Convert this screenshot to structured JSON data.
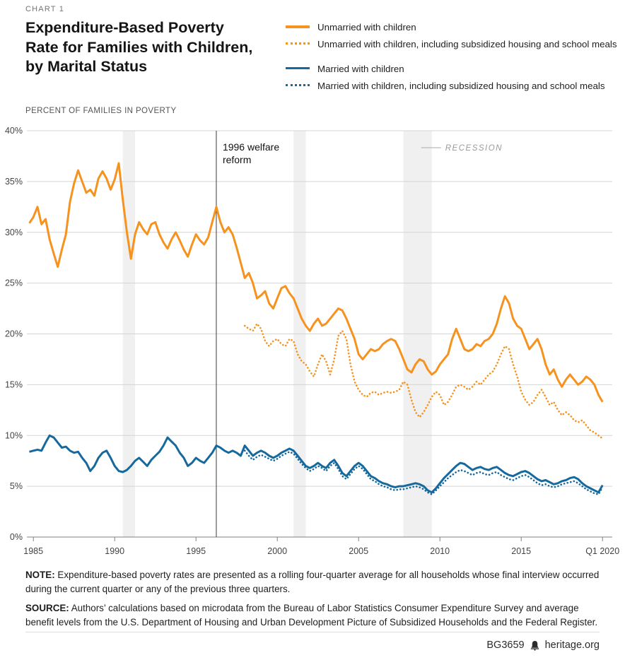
{
  "header": {
    "kicker": "CHART 1",
    "title_lines": [
      "Expenditure-Based Poverty",
      "Rate for Families with Children,",
      "by Marital Status"
    ]
  },
  "legend": {
    "items": [
      {
        "label": "Unmarried with children",
        "color": "#F6921E",
        "style": "solid"
      },
      {
        "label": "Unmarried with children, including subsidized housing and school meals",
        "color": "#F6921E",
        "style": "dotted"
      },
      {
        "label": "Married with children",
        "color": "#16699D",
        "style": "solid"
      },
      {
        "label": "Married with children, including subsidized housing and school meals",
        "color": "#16699D",
        "style": "dotted"
      }
    ]
  },
  "annotations": {
    "reform": {
      "x": 1996.25,
      "lines": [
        "1996 welfare",
        "reform"
      ]
    },
    "recession_label": "RECESSION",
    "recession_pointer_x": 2008.85
  },
  "chart_data": {
    "type": "line",
    "title": "Expenditure-Based Poverty Rate for Families with Children, by Marital Status",
    "ylabel": "PERCENT OF FAMILIES IN POVERTY",
    "xlabel": "",
    "ylim": [
      0,
      40
    ],
    "yticks": [
      0,
      5,
      10,
      15,
      20,
      25,
      30,
      35,
      40
    ],
    "ytick_suffix": "%",
    "xlim": [
      1984.6,
      2020.6
    ],
    "xticks": [
      {
        "x": 1985,
        "label": "1985"
      },
      {
        "x": 1990,
        "label": "1990"
      },
      {
        "x": 1995,
        "label": "1995"
      },
      {
        "x": 2000,
        "label": "2000"
      },
      {
        "x": 2005,
        "label": "2005"
      },
      {
        "x": 2010,
        "label": "2010"
      },
      {
        "x": 2015,
        "label": "2015"
      },
      {
        "x": 2020,
        "label": "Q1 2020"
      }
    ],
    "grid": true,
    "legend_position": "top-right",
    "recessions": [
      [
        1990.5,
        1991.25
      ],
      [
        2001.0,
        2001.75
      ],
      [
        2007.75,
        2009.5
      ]
    ],
    "colors": {
      "band": "#F0F0F0",
      "grid": "#D4D4D4",
      "axis": "#808080"
    },
    "series": [
      {
        "id": "unmarried",
        "name": "Unmarried with children",
        "color": "#F6921E",
        "dash": "solid",
        "start": 1984.75,
        "step": 0.25,
        "values": [
          30.9,
          31.5,
          32.5,
          30.8,
          31.3,
          29.3,
          27.9,
          26.6,
          28.3,
          29.8,
          33.0,
          34.8,
          36.1,
          35.0,
          33.9,
          34.2,
          33.6,
          35.3,
          36.0,
          35.3,
          34.2,
          35.2,
          36.8,
          33.2,
          30.0,
          27.4,
          29.8,
          31.0,
          30.3,
          29.8,
          30.8,
          31.0,
          29.8,
          29.0,
          28.4,
          29.3,
          30.0,
          29.2,
          28.3,
          27.6,
          28.8,
          29.8,
          29.2,
          28.8,
          29.5,
          31.0,
          32.5,
          31.0,
          30.0,
          30.5,
          29.8,
          28.5,
          27.0,
          25.5,
          26.0,
          25.0,
          23.5,
          23.8,
          24.2,
          23.0,
          22.5,
          23.5,
          24.5,
          24.7,
          24.0,
          23.5,
          22.5,
          21.5,
          20.8,
          20.3,
          21.0,
          21.5,
          20.8,
          21.0,
          21.5,
          22.0,
          22.5,
          22.3,
          21.5,
          20.5,
          19.5,
          18.0,
          17.5,
          18.0,
          18.5,
          18.3,
          18.5,
          19.0,
          19.3,
          19.5,
          19.3,
          18.5,
          17.5,
          16.5,
          16.2,
          17.0,
          17.5,
          17.3,
          16.5,
          16.0,
          16.3,
          17.0,
          17.5,
          18.0,
          19.5,
          20.5,
          19.5,
          18.5,
          18.3,
          18.5,
          19.0,
          18.8,
          19.3,
          19.5,
          20.0,
          21.0,
          22.5,
          23.7,
          23.0,
          21.5,
          20.8,
          20.5,
          19.5,
          18.5,
          19.0,
          19.5,
          18.5,
          17.0,
          16.0,
          16.5,
          15.5,
          14.8,
          15.5,
          16.0,
          15.5,
          15.0,
          15.3,
          15.8,
          15.5,
          15.0,
          14.0,
          13.3
        ]
      },
      {
        "id": "unmarried-subsidized",
        "name": "Unmarried with children, including subsidized housing and school meals",
        "color": "#F6921E",
        "dash": "dotted",
        "start": 1998.0,
        "step": 0.25,
        "values": [
          20.8,
          20.5,
          20.3,
          21.0,
          20.5,
          19.3,
          18.8,
          19.3,
          19.5,
          19.0,
          18.8,
          19.5,
          19.3,
          18.0,
          17.3,
          17.0,
          16.3,
          15.8,
          17.0,
          18.0,
          17.3,
          16.0,
          17.5,
          19.8,
          20.3,
          19.5,
          17.0,
          15.3,
          14.5,
          14.0,
          13.8,
          14.2,
          14.3,
          14.0,
          14.2,
          14.3,
          14.2,
          14.3,
          14.5,
          15.3,
          15.0,
          13.5,
          12.3,
          11.8,
          12.3,
          13.0,
          13.8,
          14.3,
          14.0,
          13.0,
          13.3,
          14.0,
          14.8,
          15.0,
          14.8,
          14.5,
          14.8,
          15.3,
          15.0,
          15.5,
          16.0,
          16.3,
          17.0,
          18.0,
          18.8,
          18.5,
          17.0,
          15.8,
          14.3,
          13.5,
          13.0,
          13.3,
          14.0,
          14.5,
          13.8,
          13.0,
          13.3,
          12.5,
          12.0,
          12.3,
          12.0,
          11.5,
          11.3,
          11.5,
          11.0,
          10.5,
          10.3,
          10.0,
          9.7
        ]
      },
      {
        "id": "married",
        "name": "Married with children",
        "color": "#16699D",
        "dash": "solid",
        "start": 1984.75,
        "step": 0.25,
        "values": [
          8.4,
          8.5,
          8.6,
          8.5,
          9.3,
          10.0,
          9.8,
          9.3,
          8.8,
          8.9,
          8.5,
          8.3,
          8.4,
          7.8,
          7.3,
          6.5,
          7.0,
          7.8,
          8.3,
          8.5,
          7.8,
          7.0,
          6.5,
          6.4,
          6.6,
          7.0,
          7.5,
          7.8,
          7.4,
          7.0,
          7.6,
          8.0,
          8.4,
          9.0,
          9.8,
          9.4,
          9.0,
          8.3,
          7.8,
          7.0,
          7.3,
          7.8,
          7.5,
          7.3,
          7.8,
          8.3,
          9.0,
          8.8,
          8.5,
          8.3,
          8.5,
          8.3,
          8.0,
          9.0,
          8.5,
          8.0,
          8.3,
          8.5,
          8.3,
          8.0,
          7.8,
          8.0,
          8.3,
          8.5,
          8.7,
          8.5,
          8.0,
          7.5,
          7.0,
          6.8,
          7.0,
          7.3,
          7.0,
          6.8,
          7.3,
          7.6,
          7.0,
          6.3,
          6.0,
          6.5,
          7.0,
          7.3,
          7.0,
          6.5,
          6.0,
          5.8,
          5.5,
          5.3,
          5.2,
          5.0,
          4.9,
          5.0,
          5.0,
          5.1,
          5.2,
          5.3,
          5.2,
          5.0,
          4.6,
          4.4,
          4.8,
          5.3,
          5.8,
          6.2,
          6.6,
          7.0,
          7.3,
          7.2,
          6.9,
          6.6,
          6.8,
          6.9,
          6.7,
          6.6,
          6.8,
          6.9,
          6.6,
          6.3,
          6.1,
          6.0,
          6.2,
          6.4,
          6.5,
          6.3,
          6.0,
          5.7,
          5.5,
          5.6,
          5.4,
          5.2,
          5.3,
          5.5,
          5.6,
          5.8,
          5.9,
          5.7,
          5.3,
          5.0,
          4.8,
          4.6,
          4.4,
          5.1
        ]
      },
      {
        "id": "married-subsidized",
        "name": "Married with children, including subsidized housing and school meals",
        "color": "#16699D",
        "dash": "dotted",
        "start": 1998.0,
        "step": 0.25,
        "values": [
          8.5,
          8.0,
          7.6,
          7.9,
          8.1,
          7.9,
          7.7,
          7.5,
          7.7,
          8.0,
          8.2,
          8.4,
          8.2,
          7.7,
          7.2,
          6.8,
          6.5,
          6.7,
          7.0,
          6.8,
          6.5,
          7.0,
          7.3,
          6.7,
          6.0,
          5.7,
          6.2,
          6.7,
          7.0,
          6.7,
          6.2,
          5.7,
          5.5,
          5.2,
          5.0,
          4.9,
          4.7,
          4.6,
          4.7,
          4.7,
          4.8,
          4.9,
          5.0,
          4.9,
          4.7,
          4.4,
          4.2,
          4.6,
          5.0,
          5.4,
          5.8,
          6.1,
          6.4,
          6.6,
          6.5,
          6.3,
          6.1,
          6.3,
          6.4,
          6.2,
          6.1,
          6.3,
          6.4,
          6.1,
          5.9,
          5.7,
          5.6,
          5.8,
          6.0,
          6.1,
          5.9,
          5.6,
          5.3,
          5.1,
          5.2,
          5.0,
          4.9,
          5.0,
          5.2,
          5.3,
          5.4,
          5.5,
          5.3,
          5.0,
          4.7,
          4.5,
          4.3,
          4.2,
          4.9
        ]
      }
    ]
  },
  "note": {
    "label": "NOTE:",
    "text": "Expenditure-based poverty rates are presented as a rolling four-quarter average for all households whose final interview occurred during the current quarter or any of the previous three quarters."
  },
  "source": {
    "label": "SOURCE:",
    "text": "Authors’ calculations based on microdata from the Bureau of Labor Statistics Consumer Expenditure Survey and average benefit levels from the U.S. Department of Housing and Urban Development Picture of Subsidized Households and the Federal Register."
  },
  "footer": {
    "id": "BG3659",
    "site": "heritage.org"
  }
}
